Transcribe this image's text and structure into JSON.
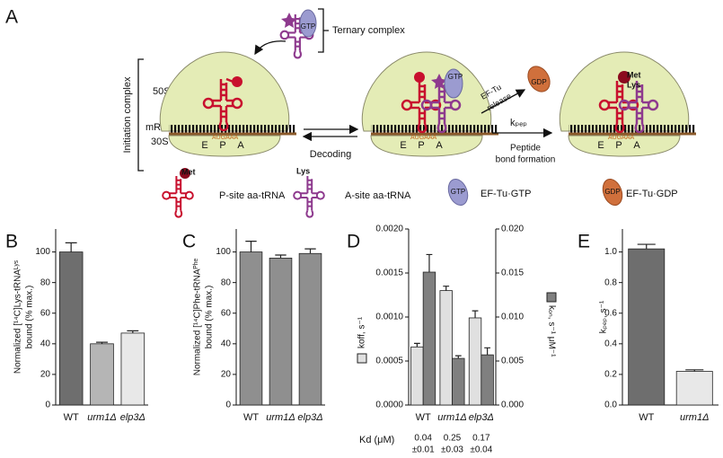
{
  "diagram": {
    "panel": "A",
    "ternary_complex": "Ternary complex",
    "initiation_complex": "Initiation complex",
    "gtp": "GTP",
    "gdp": "GDP",
    "subunit_large": "50S",
    "subunit_small": "30S",
    "mrna": "mRNA",
    "sites": [
      "E",
      "P",
      "A"
    ],
    "codons": "AUGAAA",
    "decoding": "Decoding",
    "release": [
      "EF-Tu",
      "release"
    ],
    "kpep": "kₚₑₚ",
    "peptide": [
      "Peptide",
      "bond formation"
    ],
    "met": "Met",
    "lys": "Lys",
    "legend": [
      "P-site aa-tRNA",
      "A-site aa-tRNA",
      "EF-Tu·GTP",
      "EF-Tu·GDP"
    ]
  },
  "chart_data": [
    {
      "type": "bar",
      "panel": "B",
      "ylabel": [
        "Normalized [¹⁴C]Lys-tRNAᴸʸˢ",
        "bound (% max.)"
      ],
      "categories": [
        "WT",
        "urm1Δ",
        "elp3Δ"
      ],
      "values": [
        100,
        40,
        47
      ],
      "errors": [
        6,
        1,
        1.5
      ],
      "colors": [
        "#6e6e6e",
        "#b5b5b5",
        "#e8e8e8"
      ],
      "ylim": [
        0,
        115
      ],
      "yticks": [
        0,
        20,
        40,
        60,
        80,
        100
      ]
    },
    {
      "type": "bar",
      "panel": "C",
      "ylabel": [
        "Normalized [¹⁴C]Phe-tRNAᴾʰᵉ",
        "bound (% max.)"
      ],
      "categories": [
        "WT",
        "urm1Δ",
        "elp3Δ"
      ],
      "values": [
        100,
        96,
        99
      ],
      "errors": [
        7,
        2,
        3
      ],
      "colors": [
        "#8f8f8f",
        "#8f8f8f",
        "#8f8f8f"
      ],
      "ylim": [
        0,
        115
      ],
      "yticks": [
        0,
        20,
        40,
        60,
        80,
        100
      ]
    },
    {
      "type": "bar",
      "panel": "D",
      "categories": [
        "WT",
        "urm1Δ",
        "elp3Δ"
      ],
      "series": [
        {
          "name": "koff, s⁻¹",
          "color": "#e0e0e0",
          "values": [
            0.00066,
            0.0013,
            0.00099
          ],
          "errors": [
            4e-05,
            5e-05,
            8e-05
          ]
        },
        {
          "name": "kₒₙ, s⁻¹ μM⁻¹",
          "color": "#808080",
          "axis": "y2",
          "values": [
            0.0151,
            0.0053,
            0.0057
          ],
          "errors": [
            0.002,
            0.0003,
            0.0008
          ]
        }
      ],
      "ylim": [
        0,
        0.002
      ],
      "yticks": [
        {
          "value": 0,
          "label": "0.0000"
        },
        {
          "value": 0.0005,
          "label": "0.0005"
        },
        {
          "value": 0.001,
          "label": "0.0010"
        },
        {
          "value": 0.0015,
          "label": "0.0015"
        },
        {
          "value": 0.002,
          "label": "0.0020"
        }
      ],
      "y2lim": [
        0,
        0.02
      ],
      "y2ticks": [
        {
          "value": 0,
          "label": "0.000"
        },
        {
          "value": 0.005,
          "label": "0.005"
        },
        {
          "value": 0.01,
          "label": "0.010"
        },
        {
          "value": 0.015,
          "label": "0.015"
        },
        {
          "value": 0.02,
          "label": "0.020"
        }
      ],
      "kd_label": "Kd (μM)",
      "kd_values": [
        "0.04",
        "0.25",
        "0.17"
      ],
      "kd_errors": [
        "±0.01",
        "±0.03",
        "±0.04"
      ]
    },
    {
      "type": "bar",
      "panel": "E",
      "ylabel": [
        "kₚₑₚ, s⁻¹"
      ],
      "categories": [
        "WT",
        "urm1Δ"
      ],
      "values": [
        1.02,
        0.22
      ],
      "errors": [
        0.03,
        0.01
      ],
      "colors": [
        "#6e6e6e",
        "#e8e8e8"
      ],
      "ylim": [
        0,
        1.15
      ],
      "yticks": [
        {
          "value": 0,
          "label": "0.0"
        },
        0.2,
        0.4,
        0.6,
        0.8,
        {
          "value": 1,
          "label": "1.0"
        }
      ]
    }
  ]
}
